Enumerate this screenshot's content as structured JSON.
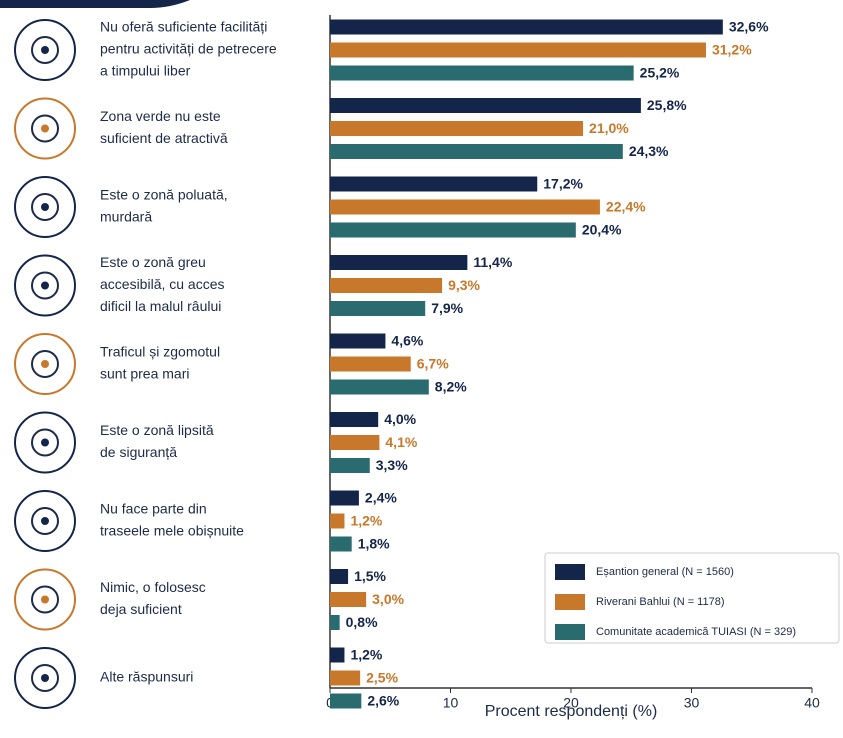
{
  "chart_data": {
    "type": "barh",
    "x_label": "Procent respondenți (%)",
    "categories": [
      [
        "Nu oferă suficiente facilități",
        "pentru activități de petrecere",
        "a timpului liber"
      ],
      [
        "Zona verde nu este",
        "suficient de atractivă"
      ],
      [
        "Este o zonă poluată,",
        "murdară"
      ],
      [
        "Este o zonă greu",
        "accesibilă, cu acces",
        "dificil la malul râului"
      ],
      [
        "Traficul și zgomotul",
        "sunt prea mari"
      ],
      [
        "Este o zonă lipsită",
        "de siguranță"
      ],
      [
        "Nu face parte din",
        "traseele mele obișnuite"
      ],
      [
        "Nimic, o folosesc",
        "deja suficient"
      ],
      [
        "Alte răspunsuri"
      ]
    ],
    "series": [
      {
        "name": "Eșantion general (N = 1560)",
        "color": "#14254a",
        "values": [
          32.6,
          25.8,
          17.2,
          11.4,
          4.6,
          4.0,
          2.4,
          1.5,
          1.2
        ],
        "value_labels": [
          "32,6%",
          "25,8%",
          "17,2%",
          "11,4%",
          "4,6%",
          "4,0%",
          "2,4%",
          "1,5%",
          "1,2%"
        ]
      },
      {
        "name": "Riverani Bahlui (N = 1178)",
        "color": "#c8782a",
        "values": [
          31.2,
          21.0,
          22.4,
          9.3,
          6.7,
          4.1,
          1.2,
          3.0,
          2.5
        ],
        "value_labels": [
          "31,2%",
          "21,0%",
          "22,4%",
          "9,3%",
          "6,7%",
          "4,1%",
          "1,2%",
          "3,0%",
          "2,5%"
        ]
      },
      {
        "name": "Comunitate academică TUIASI (N = 329)",
        "color": "#2a6b70",
        "values": [
          25.2,
          24.3,
          20.4,
          7.9,
          8.2,
          3.3,
          1.8,
          0.8,
          2.6
        ],
        "value_labels": [
          "25,2%",
          "24,3%",
          "20,4%",
          "7,9%",
          "8,2%",
          "3,3%",
          "1,8%",
          "0,8%",
          "2,6%"
        ]
      }
    ],
    "xlim": [
      0,
      40
    ],
    "xticks": [
      0,
      10,
      20,
      30,
      40
    ],
    "legend": "lower right"
  }
}
